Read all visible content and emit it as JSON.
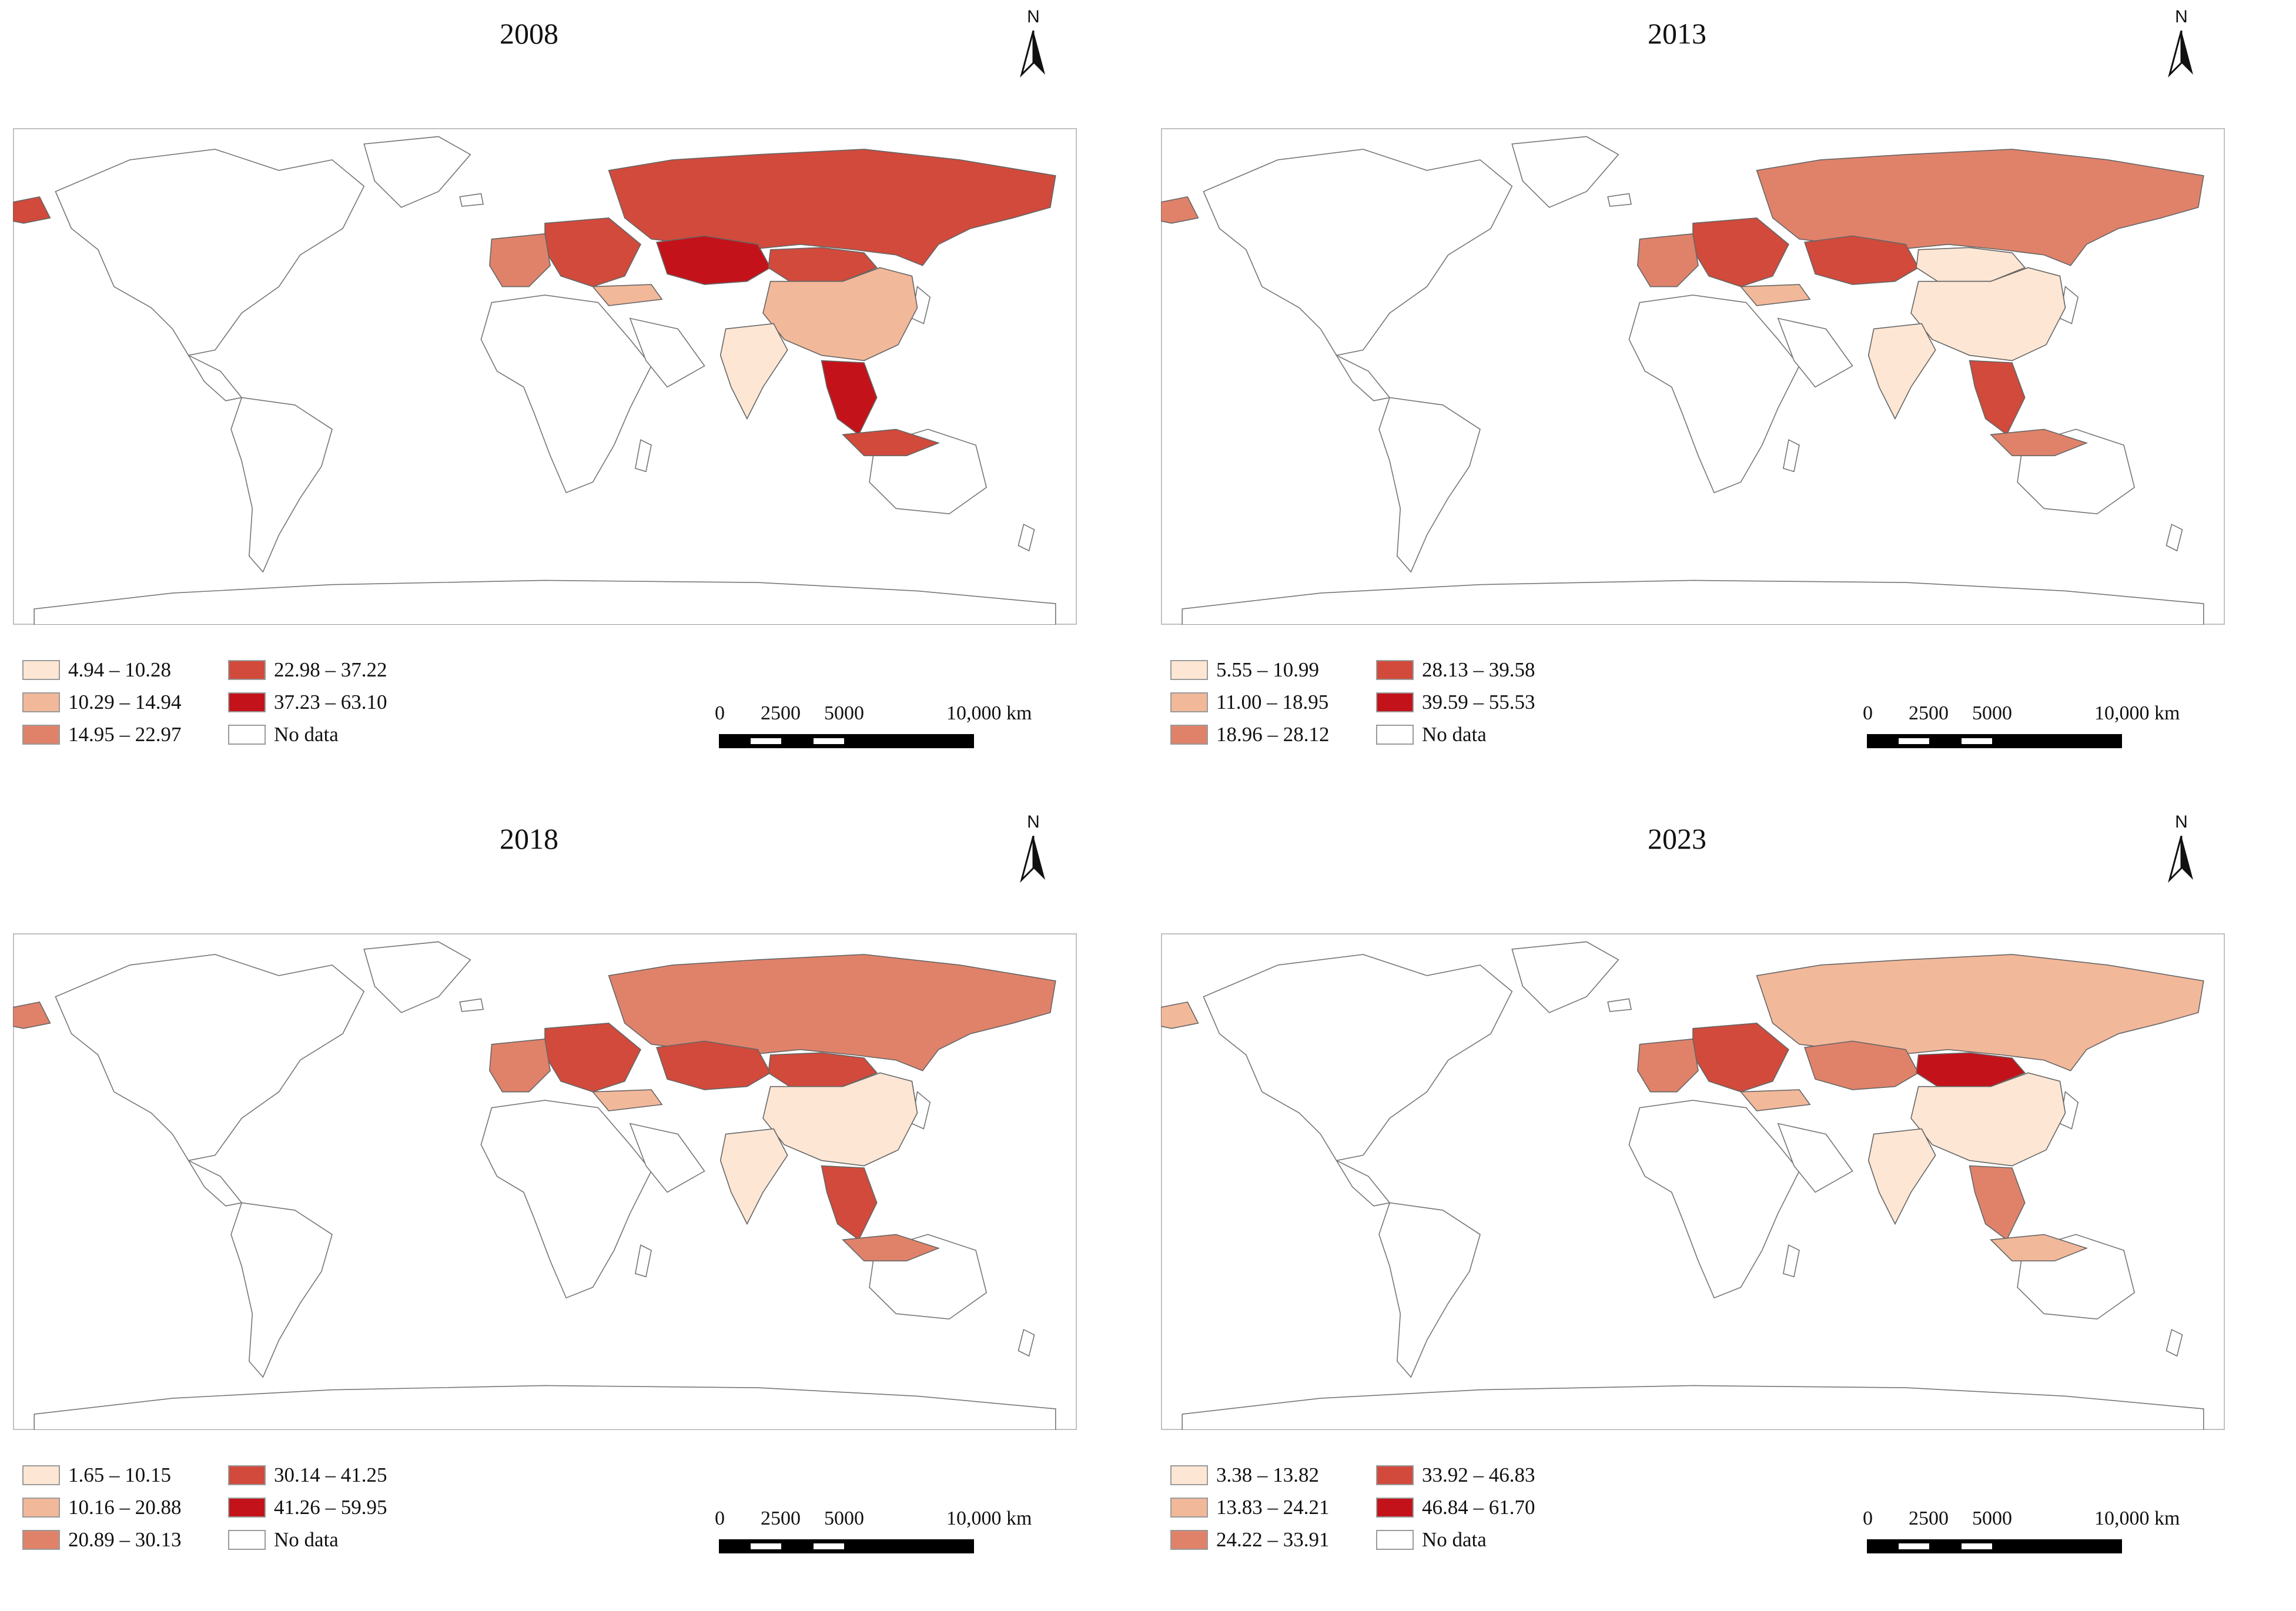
{
  "figure": {
    "panels": [
      {
        "year": "2008",
        "north": "N",
        "legend": [
          {
            "label": "4.94 – 10.28",
            "color": "#fde6d4"
          },
          {
            "label": "10.29 – 14.94",
            "color": "#f2b89a"
          },
          {
            "label": "14.95 – 22.97",
            "color": "#e0826a"
          },
          {
            "label": "22.98 – 37.22",
            "color": "#d14a3b"
          },
          {
            "label": "37.23 – 63.10",
            "color": "#c4121a"
          },
          {
            "label": "No data",
            "color": "#ffffff"
          }
        ],
        "scale": {
          "ticks": [
            "0",
            "2500",
            "5000",
            "10,000 km"
          ]
        },
        "regions": {
          "russia": 3,
          "kazakhstan": 4,
          "mongolia": 3,
          "china": 1,
          "india": 0,
          "europe_east": 3,
          "europe_west": 2,
          "turkey": 1,
          "se_asia": 4,
          "indonesia": 3,
          "alaska": 3
        }
      },
      {
        "year": "2013",
        "north": "N",
        "legend": [
          {
            "label": "5.55 – 10.99",
            "color": "#fde6d4"
          },
          {
            "label": "11.00 – 18.95",
            "color": "#f2b89a"
          },
          {
            "label": "18.96 – 28.12",
            "color": "#e0826a"
          },
          {
            "label": "28.13 – 39.58",
            "color": "#d14a3b"
          },
          {
            "label": "39.59 – 55.53",
            "color": "#c4121a"
          },
          {
            "label": "No data",
            "color": "#ffffff"
          }
        ],
        "scale": {
          "ticks": [
            "0",
            "2500",
            "5000",
            "10,000 km"
          ]
        },
        "regions": {
          "russia": 2,
          "kazakhstan": 3,
          "mongolia": 0,
          "china": 0,
          "india": 0,
          "europe_east": 3,
          "europe_west": 2,
          "turkey": 1,
          "se_asia": 3,
          "indonesia": 2,
          "alaska": 2
        }
      },
      {
        "year": "2018",
        "north": "N",
        "legend": [
          {
            "label": "1.65 – 10.15",
            "color": "#fde6d4"
          },
          {
            "label": "10.16 – 20.88",
            "color": "#f2b89a"
          },
          {
            "label": "20.89 – 30.13",
            "color": "#e0826a"
          },
          {
            "label": "30.14 – 41.25",
            "color": "#d14a3b"
          },
          {
            "label": "41.26 – 59.95",
            "color": "#c4121a"
          },
          {
            "label": "No data",
            "color": "#ffffff"
          }
        ],
        "scale": {
          "ticks": [
            "0",
            "2500",
            "5000",
            "10,000 km"
          ]
        },
        "regions": {
          "russia": 2,
          "kazakhstan": 3,
          "mongolia": 3,
          "china": 0,
          "india": 0,
          "europe_east": 3,
          "europe_west": 2,
          "turkey": 1,
          "se_asia": 3,
          "indonesia": 2,
          "alaska": 2
        }
      },
      {
        "year": "2023",
        "north": "N",
        "legend": [
          {
            "label": "3.38 – 13.82",
            "color": "#fde6d4"
          },
          {
            "label": "13.83 – 24.21",
            "color": "#f2b89a"
          },
          {
            "label": "24.22 – 33.91",
            "color": "#e0826a"
          },
          {
            "label": "33.92 – 46.83",
            "color": "#d14a3b"
          },
          {
            "label": "46.84 – 61.70",
            "color": "#c4121a"
          },
          {
            "label": "No data",
            "color": "#ffffff"
          }
        ],
        "scale": {
          "ticks": [
            "0",
            "2500",
            "5000",
            "10,000 km"
          ]
        },
        "regions": {
          "russia": 1,
          "kazakhstan": 2,
          "mongolia": 4,
          "china": 0,
          "india": 0,
          "europe_east": 3,
          "europe_west": 2,
          "turkey": 1,
          "se_asia": 2,
          "indonesia": 1,
          "alaska": 1
        }
      }
    ]
  }
}
